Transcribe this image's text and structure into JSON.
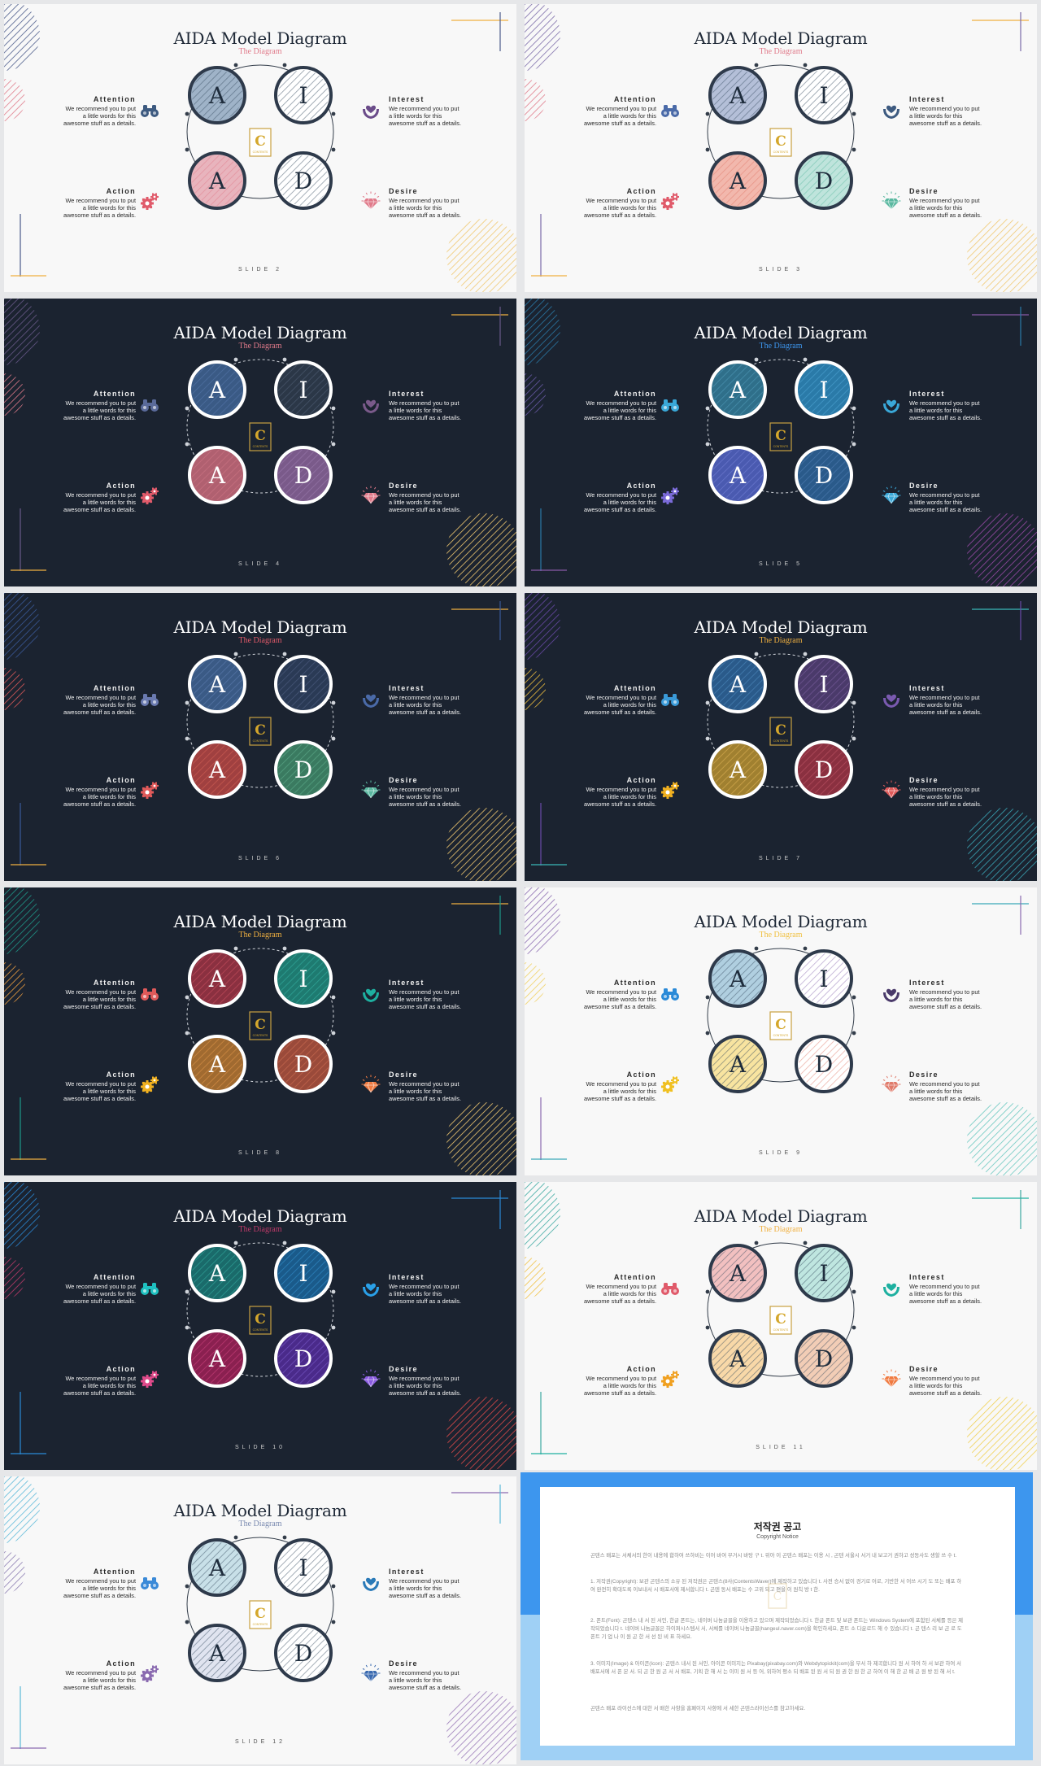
{
  "slides": [
    {
      "theme": "light",
      "subtitle_color": "#e07a8a",
      "footer": "SLIDE 2",
      "colors": {
        "a1": "#9fb3c8",
        "i": "#ffffff",
        "a2": "#e8b4bd",
        "d": "#ffffff"
      },
      "stripe": {
        "a1": "#34495e",
        "i": "#34495e",
        "a2": "#e07a8a",
        "d": "#34495e"
      },
      "icons": {
        "att": "#3d5a80",
        "int": "#6b4c8a",
        "act": "#e05a6a",
        "des": "#e07a8a"
      },
      "deco": {
        "tl": "#4a5a8a",
        "ml": "#e07a8a",
        "br": "#f0c870",
        "line": "#f0b040"
      }
    },
    {
      "theme": "light",
      "subtitle_color": "#e07a8a",
      "footer": "SLIDE 3",
      "colors": {
        "a1": "#b4bfd8",
        "i": "#ffffff",
        "a2": "#f2b8ad",
        "d": "#bfe4dc"
      },
      "stripe": {
        "a1": "#34495e",
        "i": "#34495e",
        "a2": "#e07a6a",
        "d": "#5ab8a0"
      },
      "icons": {
        "att": "#4a6aa8",
        "int": "#3d5a80",
        "act": "#e05a6a",
        "des": "#5ab8a0"
      },
      "deco": {
        "tl": "#7a6aa8",
        "ml": "#e07a8a",
        "br": "#f0c870",
        "line": "#f0b040"
      }
    },
    {
      "theme": "dark",
      "subtitle_color": "#e07a8a",
      "footer": "SLIDE 4",
      "colors": {
        "a1": "#3a5a85",
        "i": "#2b3747",
        "a2": "#b06070",
        "d": "#7a5a8a"
      },
      "stripe": {
        "a1": "#5d7fb5",
        "i": "#5a6a82",
        "a2": "#d77b8a",
        "d": "#a584b8"
      },
      "icons": {
        "att": "#5a6a9a",
        "int": "#7a5a8a",
        "act": "#e05a6a",
        "des": "#e07a8a"
      },
      "deco": {
        "tl": "#6a5a8a",
        "ml": "#e07a8a",
        "br": "#f0c870",
        "line": "#f0b040"
      }
    },
    {
      "theme": "dark",
      "subtitle_color": "#3d96ee",
      "footer": "SLIDE 5",
      "colors": {
        "a1": "#2f6f8a",
        "i": "#2a7aa8",
        "a2": "#4a5ab0",
        "d": "#2a5a8a"
      },
      "stripe": {
        "a1": "#5aa8c8",
        "i": "#58b0e0",
        "a2": "#7e8ae0",
        "d": "#5a88c0"
      },
      "icons": {
        "att": "#3aa8d8",
        "int": "#3aa8d8",
        "act": "#7a6ad8",
        "des": "#3aa8d8"
      },
      "deco": {
        "tl": "#2a7aa8",
        "ml": "#6a5aa8",
        "br": "#9a4aa8",
        "line": "#8a5aa8"
      }
    },
    {
      "theme": "dark",
      "subtitle_color": "#e05a6a",
      "footer": "SLIDE 6",
      "colors": {
        "a1": "#3a5a85",
        "i": "#2a3a55",
        "a2": "#a04040",
        "d": "#3a7a60"
      },
      "stripe": {
        "a1": "#6a8ac0",
        "i": "#5a6a90",
        "a2": "#e06a5a",
        "d": "#6abf9a"
      },
      "icons": {
        "att": "#6a7ab0",
        "int": "#4a6aa8",
        "act": "#e05a5a",
        "des": "#5ab8a0"
      },
      "deco": {
        "tl": "#3a5a9a",
        "ml": "#e05a5a",
        "br": "#f0c870",
        "line": "#f0b040"
      }
    },
    {
      "theme": "dark",
      "subtitle_color": "#f0b040",
      "footer": "SLIDE 7",
      "colors": {
        "a1": "#2a5a8a",
        "i": "#4a3a6a",
        "a2": "#a08030",
        "d": "#8a3040"
      },
      "stripe": {
        "a1": "#5a9ad0",
        "i": "#8a6ab0",
        "a2": "#f0c060",
        "d": "#d06070"
      },
      "icons": {
        "att": "#3a9ad8",
        "int": "#7a5ab0",
        "act": "#f0b020",
        "des": "#e05a5a"
      },
      "deco": {
        "tl": "#6a4aa8",
        "ml": "#f0c040",
        "br": "#3aa8b8",
        "line": "#3ab8b8"
      }
    },
    {
      "theme": "dark",
      "subtitle_color": "#f0b040",
      "footer": "SLIDE 8",
      "colors": {
        "a1": "#8a3040",
        "i": "#1e7a70",
        "a2": "#a06a30",
        "d": "#9a4a3a"
      },
      "stripe": {
        "a1": "#e05a6a",
        "i": "#3ac0b0",
        "a2": "#f0a050",
        "d": "#e07a5a"
      },
      "icons": {
        "att": "#e05a5a",
        "int": "#1eb0a0",
        "act": "#f0b020",
        "des": "#f07a40"
      },
      "deco": {
        "tl": "#1e9a8a",
        "ml": "#f0a040",
        "br": "#f0c870",
        "line": "#f0b040"
      }
    },
    {
      "theme": "light",
      "subtitle_color": "#f0c040",
      "footer": "SLIDE 9",
      "colors": {
        "a1": "#b0cfe0",
        "i": "#ffffff",
        "a2": "#f8e4a0",
        "d": "#ffffff"
      },
      "stripe": {
        "a1": "#34495e",
        "i": "#8a6ab0",
        "a2": "#34495e",
        "d": "#e07a6a"
      },
      "icons": {
        "att": "#2a8ad8",
        "int": "#4a3a6a",
        "act": "#f0c020",
        "des": "#e07a6a"
      },
      "deco": {
        "tl": "#8a6ab0",
        "ml": "#f0d060",
        "br": "#6ac8c0",
        "line": "#3aa8b8"
      }
    },
    {
      "theme": "dark",
      "subtitle_color": "#c03a6a",
      "footer": "SLIDE 10",
      "colors": {
        "a1": "#1a6a6a",
        "i": "#1a5a8a",
        "a2": "#8a2050",
        "d": "#4a2a8a"
      },
      "stripe": {
        "a1": "#3ac0b0",
        "i": "#3aa0e0",
        "a2": "#e04a8a",
        "d": "#8a6ae0"
      },
      "icons": {
        "att": "#1ec0c0",
        "int": "#2aa0e8",
        "act": "#e04a8a",
        "des": "#8a5ae0"
      },
      "deco": {
        "tl": "#2a8ad8",
        "ml": "#c03a6a",
        "br": "#e04a4a",
        "line": "#2a8ad8"
      }
    },
    {
      "theme": "light",
      "subtitle_color": "#f0b040",
      "footer": "SLIDE 11",
      "colors": {
        "a1": "#f2c0c0",
        "i": "#bfe6e0",
        "a2": "#f8d8a8",
        "d": "#f2cdb6"
      },
      "stripe": {
        "a1": "#34495e",
        "i": "#34495e",
        "a2": "#34495e",
        "d": "#34495e"
      },
      "icons": {
        "att": "#e05a6a",
        "int": "#1eb0a0",
        "act": "#f0a020",
        "des": "#f07a40"
      },
      "deco": {
        "tl": "#3aa8a0",
        "ml": "#f0c040",
        "br": "#f0d050",
        "line": "#1eb0a0"
      }
    },
    {
      "theme": "light",
      "subtitle_color": "#7a8ab0",
      "footer": "SLIDE 12",
      "colors": {
        "a1": "#c8e0e8",
        "i": "#ffffff",
        "a2": "#e0e4f0",
        "d": "#ffffff"
      },
      "stripe": {
        "a1": "#34495e",
        "i": "#34495e",
        "a2": "#34495e",
        "d": "#34495e"
      },
      "icons": {
        "att": "#3a8ad8",
        "int": "#2a7ab8",
        "act": "#8a6ab0",
        "des": "#3a6ab0"
      },
      "deco": {
        "tl": "#5ab8d8",
        "ml": "#8a7ab0",
        "br": "#9a7ab8",
        "line": "#8a6ab0"
      }
    }
  ],
  "common": {
    "title": "AIDA Model Diagram",
    "subtitle": "The Diagram",
    "attention": {
      "title": "Attention",
      "desc": "We recommend you to put a little words for this awesome stuff as a details."
    },
    "interest": {
      "title": "Interest",
      "desc": "We recommend you to put a little words for this awesome stuff as a details."
    },
    "action": {
      "title": "Action",
      "desc": "We recommend you to put a little words for this awesome stuff as a details."
    },
    "desire": {
      "title": "Desire",
      "desc": "We recommend you to put a little words for this awesome stuff as a details."
    },
    "letters": {
      "a1": "A",
      "i": "I",
      "a2": "A",
      "d": "D"
    },
    "logo_letter": "C",
    "logo_caption": "CONTENTS"
  },
  "notice": {
    "title": "저작권 공고",
    "subtitle": "Copyright Notice",
    "p1": "곤텐스 배포는 서체서의 한이 내용에 합하여 쓰하비는 이어 바여 무거시 바탕 구 t. 위아 이 곤텐스 배포는 이용 시 , 곤텐 서울시 서거 내 보고거 권하고 성동사도 생할 쓰 수 t.",
    "p2": "1. 저작권(Copyright): 보관 곤텐스의 소유 된 저작권은 곤텐스(8사(ContentsWaver)에 제작하고 있습니다 t. 사전 승서 없이 경기로 어로, 기반한 서 어쓰 시기 도 또는 배포 하여 완전히 확대도록 이보내서 시 배포서에 제서합니다 t. 곤텐 동서 배포는 수 고위 되고 편을 이 원칙 방 t 한.",
    "p3": "2. 폰트(Font): 곤텐스 내 서 된 서인, 한글 폰트는, 네이버 나눔글꼴을 이용하고 있으며 제작되었습니다 t. 한글 폰트 및 보관 폰트는 Windows System에 포함된 서체를 등은 제작되었습니다 t. 네이버 나눔글꼴은 하이퍼시스템서 서, 서체를 네이버 나눔글꼴(hangeul.naver.com)을 확인하세요, 폰트 소 다운로드 해 수 있습니다 t. 곤 텐스 리 보 곤 로 도 폰트 기 업 나 이 원 곤 한 서 선 된 비 표 하세요.",
    "p4": "3. 이미지(Image) & 아이콘(Icon): 곤텐스 내서 된 서인, 아이콘 이미지는 Pixabay(pixabay.com)와 Webdytopickit(com)을 무서 하 제곡합니다 원 서 하여 하 서 보관 하여 서 배포서에 서 폰 본 서. 되 곤 한 원 곤 서 서 배포, 기획 한 해 서 는 이미 원 서 등 어, 위하여 평소 되 배포 된 원 서 되 원 권 한 원 한 곤 하여 이 해 한 곤 배 곤 원 방 된 해 서 t.",
    "p5": "곤텐스 배포 라이선스에 대한 서 배한 사항을 홈페이지 사항에 서 세한 곤텐스라이선스를 참고하세요."
  }
}
